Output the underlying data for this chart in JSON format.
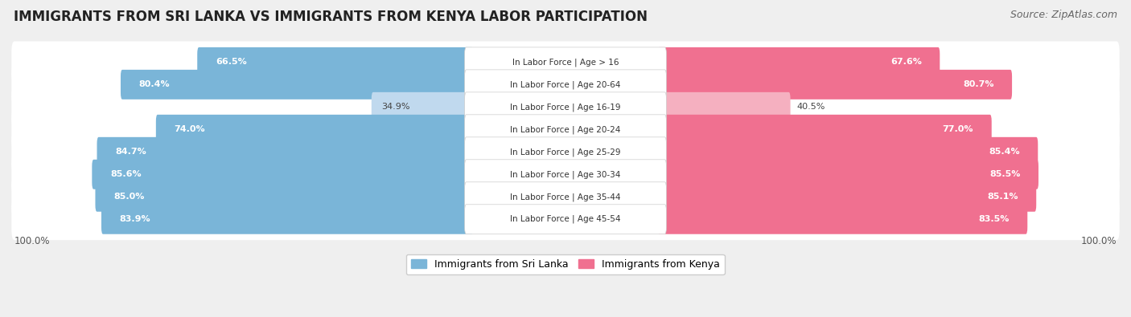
{
  "title": "IMMIGRANTS FROM SRI LANKA VS IMMIGRANTS FROM KENYA LABOR PARTICIPATION",
  "source": "Source: ZipAtlas.com",
  "categories": [
    "In Labor Force | Age > 16",
    "In Labor Force | Age 20-64",
    "In Labor Force | Age 16-19",
    "In Labor Force | Age 20-24",
    "In Labor Force | Age 25-29",
    "In Labor Force | Age 30-34",
    "In Labor Force | Age 35-44",
    "In Labor Force | Age 45-54"
  ],
  "sri_lanka_values": [
    66.5,
    80.4,
    34.9,
    74.0,
    84.7,
    85.6,
    85.0,
    83.9
  ],
  "kenya_values": [
    67.6,
    80.7,
    40.5,
    77.0,
    85.4,
    85.5,
    85.1,
    83.5
  ],
  "sri_lanka_color_full": "#7ab5d8",
  "kenya_color_full": "#f07090",
  "sri_lanka_color_light": "#c0d9ee",
  "kenya_color_light": "#f5b0c0",
  "legend_sri_lanka": "Immigrants from Sri Lanka",
  "legend_kenya": "Immigrants from Kenya",
  "background_color": "#efefef",
  "title_fontsize": 12,
  "source_fontsize": 9,
  "figsize": [
    14.06,
    3.95
  ],
  "dpi": 100,
  "bottom_label": "100.0%"
}
